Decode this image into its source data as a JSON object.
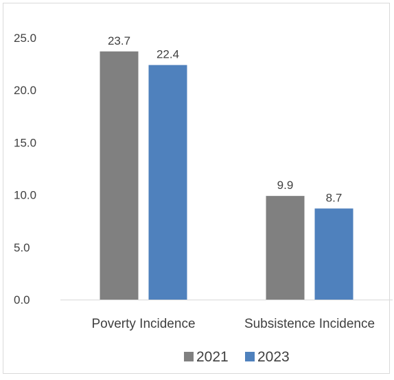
{
  "chart_data": {
    "type": "bar",
    "categories": [
      "Poverty Incidence",
      "Subsistence Incidence"
    ],
    "series": [
      {
        "name": "2021",
        "values": [
          23.7,
          9.9
        ],
        "color": "#808080"
      },
      {
        "name": "2023",
        "values": [
          22.4,
          8.7
        ],
        "color": "#4f81bd"
      }
    ],
    "yticks": [
      "0.0",
      "5.0",
      "10.0",
      "15.0",
      "20.0",
      "25.0"
    ],
    "ylim": [
      0,
      25
    ],
    "grid": false,
    "data_labels": true,
    "legend_position": "bottom",
    "title": "",
    "xlabel": "",
    "ylabel": "",
    "axis_color": "#d9d9d9",
    "text_color": "#404040"
  }
}
